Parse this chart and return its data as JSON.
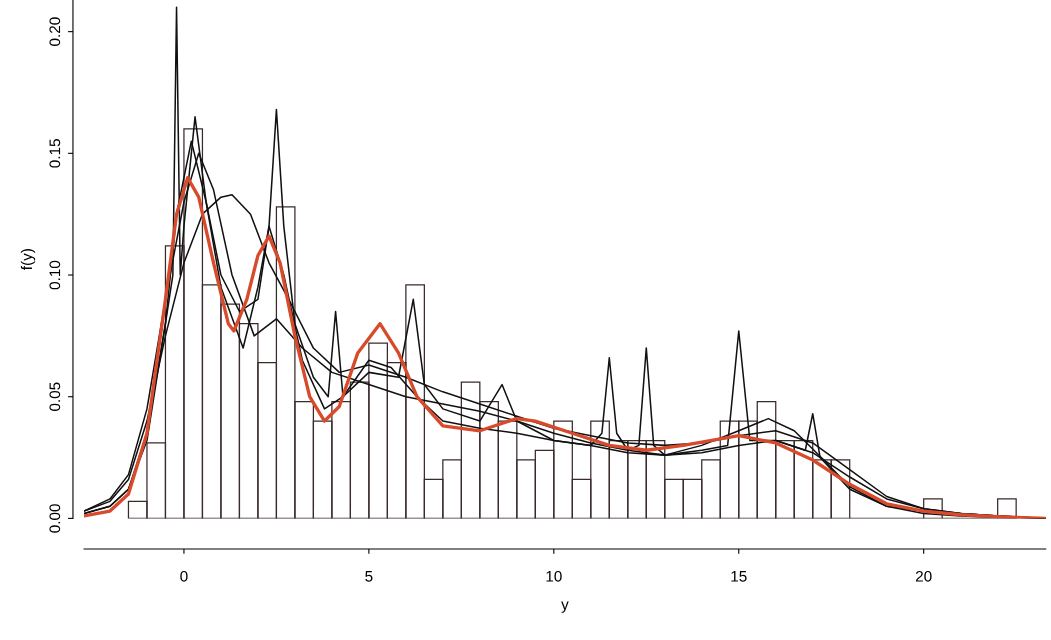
{
  "chart_data": {
    "type": "histogram",
    "xlabel": "y",
    "ylabel": "f(y)",
    "color": "#3a2a2a",
    "bins": [
      -1.5,
      -1,
      -0.5,
      0,
      0.5,
      1,
      1.5,
      2,
      2.5,
      3,
      3.5,
      4,
      4.5,
      5,
      5.5,
      6,
      6.5,
      7,
      7.5,
      8,
      8.5,
      9,
      9.5,
      10,
      10.5,
      11,
      11.5,
      12,
      12.5,
      13,
      13.5,
      14,
      14.5,
      15,
      15.5,
      16,
      16.5,
      17,
      17.5,
      18,
      18.5,
      19,
      19.5,
      20,
      20.5,
      21,
      21.5,
      22,
      22.5
    ],
    "values": [
      0.007,
      0.031,
      0.112,
      0.16,
      0.096,
      0.088,
      0.08,
      0.064,
      0.128,
      0.048,
      0.04,
      0.048,
      0.056,
      0.072,
      0.064,
      0.096,
      0.016,
      0.024,
      0.056,
      0.048,
      0.04,
      0.024,
      0.028,
      0.04,
      0.016,
      0.04,
      0.032,
      0.032,
      0.032,
      0.016,
      0.016,
      0.024,
      0.04,
      0.04,
      0.048,
      0.032,
      0.032,
      0.024,
      0.024,
      0,
      0,
      0,
      0,
      0.008,
      0,
      0,
      0,
      0.008
    ],
    "xlim": [
      -2.7,
      23.3
    ],
    "ylim": [
      0,
      0.213
    ],
    "xticks": [
      0,
      5,
      10,
      15,
      20
    ],
    "yticks": [
      {
        "value": 0,
        "label": "0.00"
      },
      {
        "value": 0.05,
        "label": "0.05"
      },
      {
        "value": 0.1,
        "label": "0.10"
      },
      {
        "value": 0.15,
        "label": "0.15"
      },
      {
        "value": 0.2,
        "label": "0.20"
      }
    ],
    "grid": false,
    "legend": false,
    "series": [
      {
        "type": "line",
        "color": "#111111",
        "x": [
          -2.7,
          -2,
          -1.5,
          -1,
          -0.5,
          -0.3,
          -0.2,
          -0.1,
          0,
          0.3,
          0.6,
          1,
          1.5,
          2,
          2.3,
          2.5,
          2.7,
          3,
          3.5,
          3.9,
          4.1,
          4.3,
          5,
          5.8,
          6.2,
          6.5,
          7,
          8,
          8.6,
          9,
          10,
          11,
          11.3,
          11.5,
          11.7,
          12,
          12.3,
          12.5,
          12.7,
          13,
          14,
          14.7,
          15,
          15.3,
          16,
          16.8,
          17,
          17.2,
          18,
          19,
          20,
          21,
          22,
          23.3
        ],
        "values": [
          0.002,
          0.005,
          0.012,
          0.035,
          0.08,
          0.1,
          0.21,
          0.1,
          0.12,
          0.165,
          0.13,
          0.1,
          0.085,
          0.09,
          0.12,
          0.168,
          0.12,
          0.08,
          0.058,
          0.05,
          0.085,
          0.05,
          0.06,
          0.058,
          0.09,
          0.055,
          0.045,
          0.04,
          0.055,
          0.04,
          0.032,
          0.03,
          0.035,
          0.066,
          0.035,
          0.028,
          0.03,
          0.07,
          0.03,
          0.026,
          0.028,
          0.03,
          0.077,
          0.032,
          0.032,
          0.028,
          0.043,
          0.025,
          0.012,
          0.005,
          0.003,
          0.002,
          0.001,
          0
        ]
      },
      {
        "type": "line",
        "color": "#111111",
        "x": [
          -2.7,
          -2,
          -1.5,
          -1,
          -0.5,
          0,
          0.5,
          1,
          1.3,
          1.8,
          2.3,
          2.9,
          3.5,
          4.2,
          5,
          6,
          7,
          8,
          9,
          10,
          11,
          12,
          13,
          14,
          15,
          16,
          17,
          18,
          19,
          20,
          21,
          22,
          23.3
        ],
        "values": [
          0.003,
          0.007,
          0.016,
          0.04,
          0.075,
          0.105,
          0.125,
          0.132,
          0.133,
          0.125,
          0.105,
          0.088,
          0.07,
          0.06,
          0.063,
          0.058,
          0.052,
          0.047,
          0.042,
          0.037,
          0.034,
          0.031,
          0.03,
          0.031,
          0.034,
          0.036,
          0.031,
          0.02,
          0.009,
          0.004,
          0.002,
          0.001,
          0
        ]
      },
      {
        "type": "line",
        "color": "#111111",
        "x": [
          -2.7,
          -2,
          -1.5,
          -1,
          -0.5,
          -0.2,
          0.2,
          0.6,
          1,
          1.6,
          2,
          2.3,
          2.7,
          3.2,
          3.8,
          4.3,
          5,
          5.6,
          6.3,
          7,
          8,
          9,
          10,
          11,
          12,
          13,
          14,
          15,
          15.8,
          16.5,
          17.3,
          18,
          19,
          20,
          21,
          22,
          23.3
        ],
        "values": [
          0.002,
          0.005,
          0.012,
          0.032,
          0.08,
          0.125,
          0.155,
          0.13,
          0.095,
          0.07,
          0.095,
          0.12,
          0.1,
          0.065,
          0.045,
          0.05,
          0.065,
          0.062,
          0.05,
          0.04,
          0.037,
          0.035,
          0.032,
          0.03,
          0.027,
          0.026,
          0.03,
          0.036,
          0.041,
          0.036,
          0.024,
          0.013,
          0.005,
          0.002,
          0.001,
          0.0005,
          0
        ]
      },
      {
        "type": "line",
        "color": "#111111",
        "x": [
          -2.7,
          -2,
          -1.5,
          -1,
          -0.5,
          0,
          0.4,
          0.8,
          1.3,
          1.9,
          2.5,
          3.2,
          4,
          5,
          6,
          7,
          8,
          9,
          10,
          11,
          12,
          13,
          14,
          15,
          16,
          17,
          18,
          19,
          20,
          21,
          22,
          23.3
        ],
        "values": [
          0.003,
          0.008,
          0.018,
          0.045,
          0.09,
          0.13,
          0.15,
          0.135,
          0.1,
          0.075,
          0.082,
          0.07,
          0.06,
          0.055,
          0.05,
          0.047,
          0.044,
          0.04,
          0.035,
          0.031,
          0.028,
          0.026,
          0.027,
          0.03,
          0.032,
          0.027,
          0.017,
          0.008,
          0.004,
          0.002,
          0.001,
          0
        ]
      },
      {
        "type": "line",
        "color": "#d84a2c",
        "x": [
          -2.7,
          -2,
          -1.5,
          -1,
          -0.5,
          -0.2,
          0.1,
          0.4,
          0.8,
          1.2,
          1.35,
          1.7,
          2,
          2.3,
          2.6,
          3,
          3.4,
          3.8,
          4.2,
          4.7,
          5.3,
          5.8,
          6.3,
          7,
          8,
          9,
          9.5,
          10.5,
          11.5,
          12.5,
          13.5,
          15,
          16,
          17,
          18,
          19,
          20,
          21,
          22,
          23.3
        ],
        "values": [
          0.001,
          0.003,
          0.01,
          0.035,
          0.09,
          0.125,
          0.14,
          0.132,
          0.105,
          0.08,
          0.077,
          0.09,
          0.108,
          0.116,
          0.105,
          0.075,
          0.05,
          0.04,
          0.046,
          0.068,
          0.08,
          0.068,
          0.05,
          0.038,
          0.036,
          0.041,
          0.04,
          0.035,
          0.03,
          0.028,
          0.03,
          0.034,
          0.031,
          0.024,
          0.014,
          0.006,
          0.003,
          0.0015,
          0.0007,
          0
        ]
      }
    ]
  }
}
